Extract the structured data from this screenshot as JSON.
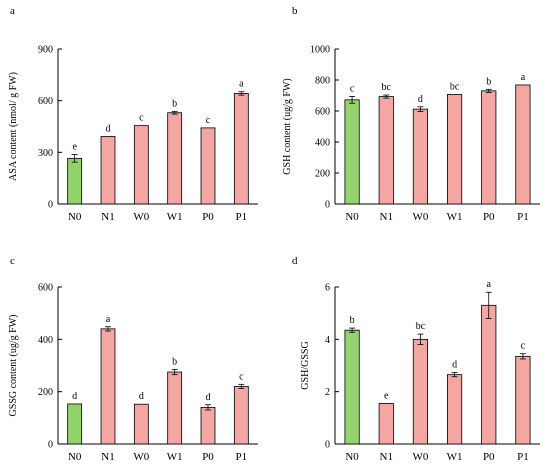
{
  "colors": {
    "control": "#92d36e",
    "treatment": "#f4a7a2",
    "stroke": "#000000"
  },
  "chart_data": [
    {
      "type": "bar",
      "panel": "a",
      "ylabel": "ASA content (nmol/ g FW)",
      "categories": [
        "N0",
        "N1",
        "W0",
        "W1",
        "P0",
        "P1"
      ],
      "values": [
        265,
        392,
        455,
        530,
        442,
        642
      ],
      "errors": [
        22,
        0,
        0,
        8,
        0,
        10
      ],
      "letters": [
        "e",
        "d",
        "c",
        "b",
        "c",
        "a"
      ],
      "ylim": [
        0,
        900
      ],
      "yticks": [
        "0",
        "300",
        "600",
        "900"
      ],
      "ytick_values": [
        0,
        300,
        600,
        900
      ]
    },
    {
      "type": "bar",
      "panel": "b",
      "ylabel": "GSH content (ug/g FW)",
      "categories": [
        "N0",
        "N1",
        "W0",
        "W1",
        "P0",
        "P1"
      ],
      "values": [
        672,
        693,
        612,
        707,
        730,
        768
      ],
      "errors": [
        22,
        10,
        15,
        0,
        10,
        0
      ],
      "letters": [
        "c",
        "bc",
        "d",
        "bc",
        "b",
        "a"
      ],
      "ylim": [
        0,
        1000
      ],
      "yticks": [
        "0",
        "200",
        "400",
        "600",
        "800",
        "1000"
      ],
      "ytick_values": [
        0,
        200,
        400,
        600,
        800,
        1000
      ]
    },
    {
      "type": "bar",
      "panel": "c",
      "ylabel": "GSSG content (ug/g FW)",
      "categories": [
        "N0",
        "N1",
        "W0",
        "W1",
        "P0",
        "P1"
      ],
      "values": [
        153,
        440,
        152,
        275,
        140,
        220
      ],
      "errors": [
        0,
        8,
        0,
        10,
        10,
        8
      ],
      "letters": [
        "d",
        "a",
        "d",
        "b",
        "d",
        "c"
      ],
      "ylim": [
        0,
        600
      ],
      "yticks": [
        "0",
        "200",
        "400",
        "600"
      ],
      "ytick_values": [
        0,
        200,
        400,
        600
      ]
    },
    {
      "type": "bar",
      "panel": "d",
      "ylabel": "GSH/GSSG",
      "categories": [
        "N0",
        "N1",
        "W0",
        "W1",
        "P0",
        "P1"
      ],
      "values": [
        4.35,
        1.55,
        4.0,
        2.65,
        5.3,
        3.35
      ],
      "errors": [
        0.08,
        0.0,
        0.2,
        0.08,
        0.5,
        0.1
      ],
      "letters": [
        "b",
        "e",
        "bc",
        "d",
        "a",
        "c"
      ],
      "ylim": [
        0,
        6
      ],
      "yticks": [
        "0",
        "2",
        "4",
        "6"
      ],
      "ytick_values": [
        0,
        2,
        4,
        6
      ]
    }
  ]
}
